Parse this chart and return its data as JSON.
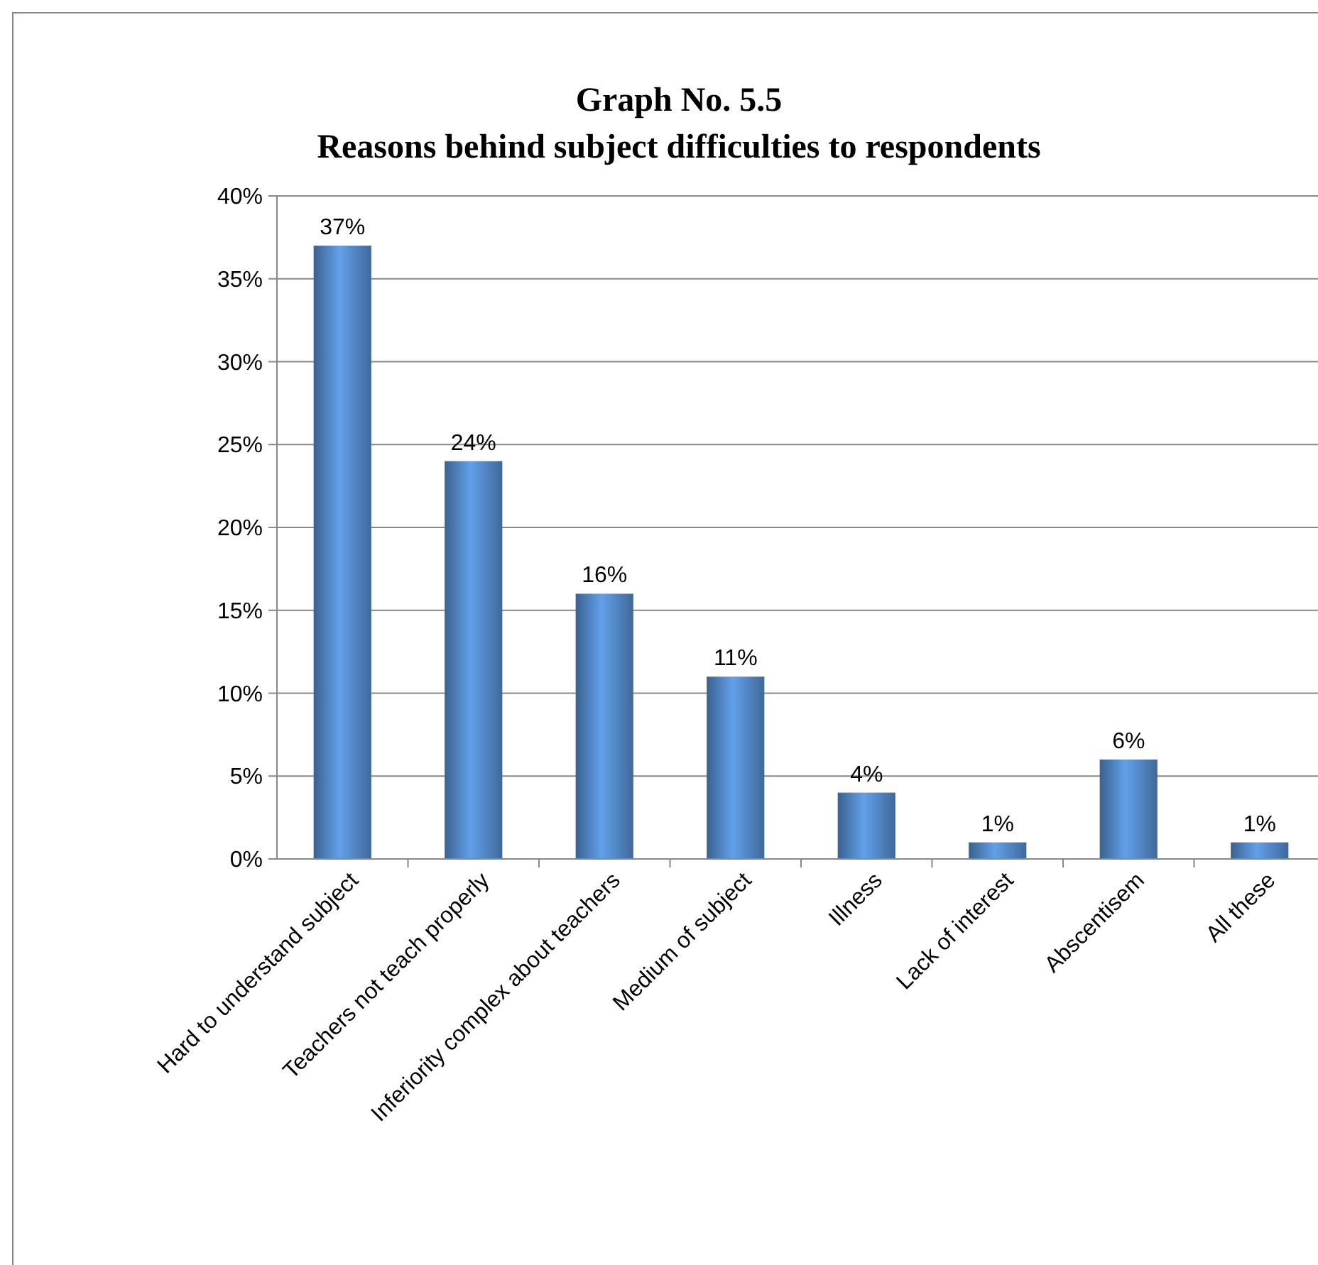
{
  "chart_data": {
    "type": "bar",
    "title": "Graph No. 5.5",
    "subtitle": "Reasons behind subject difficulties to respondents",
    "categories": [
      "Hard to understand subject",
      "Teachers not teach properly",
      "Inferiority complex about teachers",
      "Medium of subject",
      "Illness",
      "Lack of interest",
      "Abscentisem",
      "All these"
    ],
    "values": [
      37,
      24,
      16,
      11,
      4,
      1,
      6,
      1
    ],
    "value_labels": [
      "37%",
      "24%",
      "16%",
      "11%",
      "4%",
      "1%",
      "6%",
      "1%"
    ],
    "color": "#4f81bd",
    "ylim": [
      0,
      40
    ],
    "yticks": [
      {
        "value": 0,
        "label": "0%"
      },
      {
        "value": 5,
        "label": "5%"
      },
      {
        "value": 10,
        "label": "10%"
      },
      {
        "value": 15,
        "label": "15%"
      },
      {
        "value": 20,
        "label": "20%"
      },
      {
        "value": 25,
        "label": "25%"
      },
      {
        "value": 30,
        "label": "30%"
      },
      {
        "value": 35,
        "label": "35%"
      },
      {
        "value": 40,
        "label": "40%"
      }
    ],
    "grid": "y"
  }
}
